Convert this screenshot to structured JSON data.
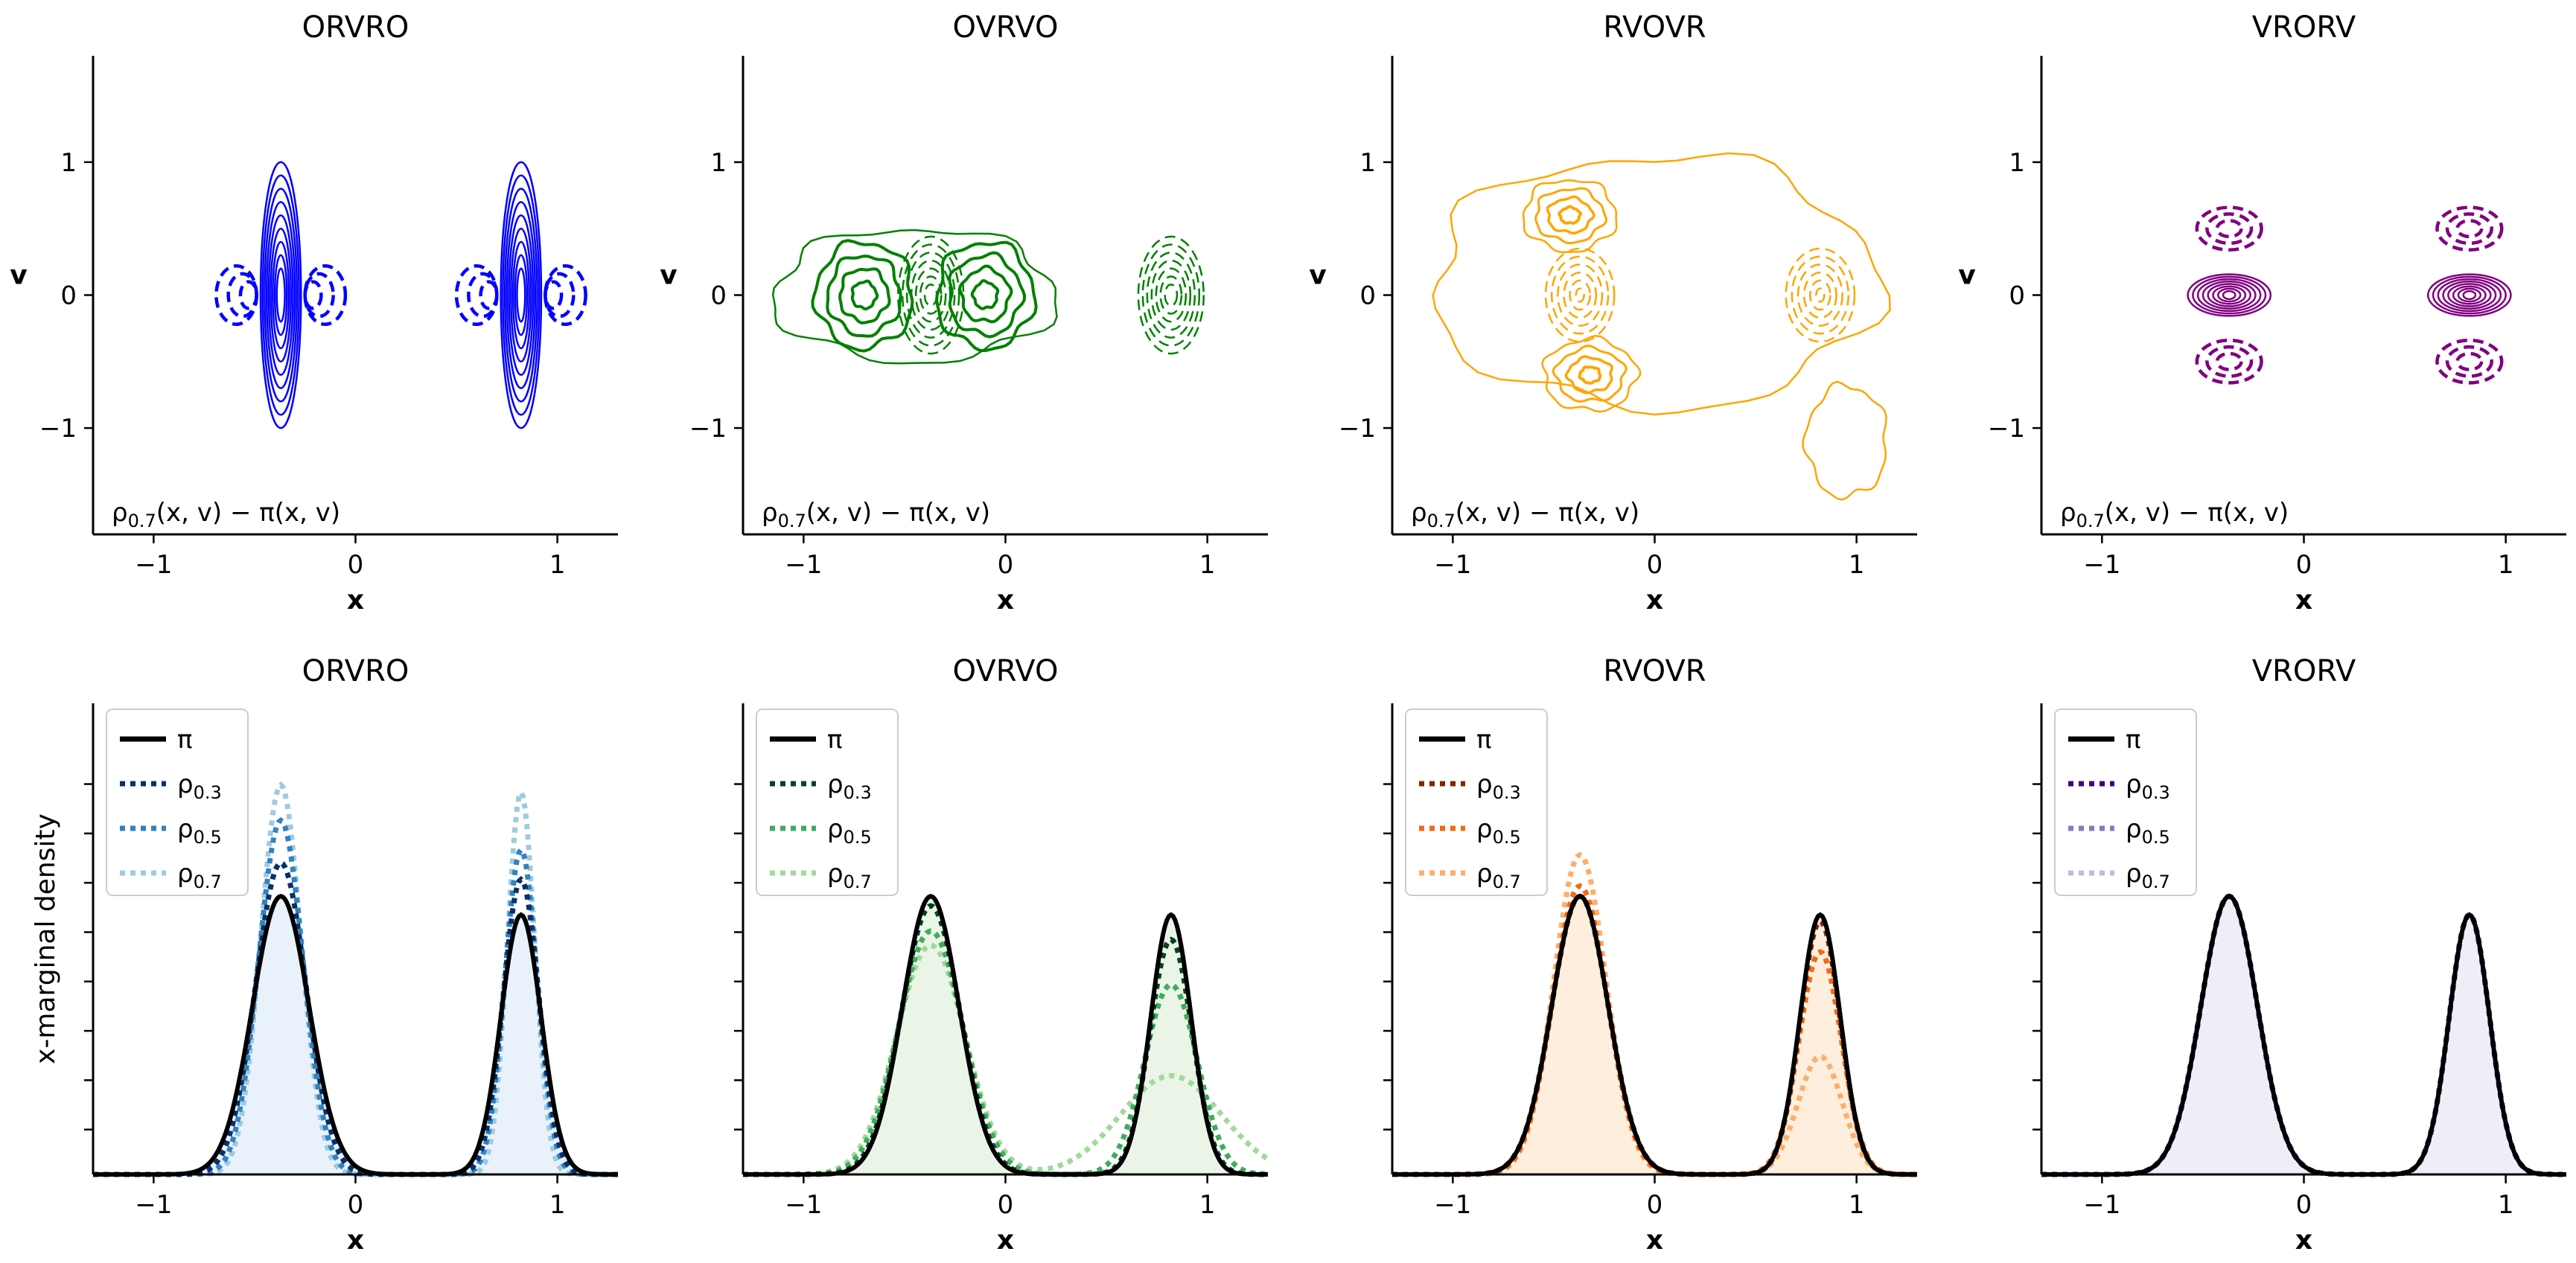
{
  "chart_data": {
    "type": "contour+line",
    "xlim": [
      -1.3,
      1.3
    ],
    "xticks": [
      -1,
      0,
      1
    ],
    "xtick_labels": [
      "−1",
      "0",
      "1"
    ],
    "xlabel": "x",
    "top_row": {
      "ylim": [
        -1.8,
        1.8
      ],
      "yticks": [
        -1,
        0,
        1
      ],
      "ytick_labels": [
        "−1",
        "0",
        "1"
      ],
      "ylabel": "v",
      "annotation": "ρ",
      "annotation_sub": "0.7",
      "annotation_rest": "(x, v) − π(x, v)",
      "panels": [
        {
          "title": "ORVRO",
          "color": "#0000ff",
          "mode_x": [
            -0.37,
            0.82
          ],
          "solid_center_rx": [
            0.06,
            0.06
          ],
          "solid_extent_v": 1.0,
          "dashed_side_offset": 0.2
        },
        {
          "title": "OVRVO",
          "color": "#008000",
          "mode_x": [
            -0.37,
            0.82
          ],
          "solid_lobes_x": [
            -0.7,
            -0.1
          ],
          "dashed_center_x": [
            -0.37,
            0.82
          ]
        },
        {
          "title": "RVOVR",
          "color": "#ffa500",
          "mode_x": [
            -0.37,
            0.82
          ],
          "solid_lobes_v": [
            0.55,
            -0.55
          ],
          "dashed_center_x": [
            -0.37,
            0.82
          ]
        },
        {
          "title": "VRORV",
          "color": "#800080",
          "mode_x": [
            -0.37,
            0.82
          ],
          "solid_center_x": [
            -0.37,
            0.82
          ],
          "dashed_lobes_v": [
            0.5,
            -0.5
          ]
        }
      ]
    },
    "bottom_row": {
      "ylim": [
        0,
        1.05
      ],
      "ylabel": "x-marginal density",
      "series_names": [
        "π",
        "ρ",
        "ρ",
        "ρ"
      ],
      "series_subs": [
        "",
        "0.3",
        "0.5",
        "0.7"
      ],
      "target": {
        "modes": [
          {
            "mu": -0.37,
            "sd": 0.14,
            "w": 0.6
          },
          {
            "mu": 0.82,
            "sd": 0.1,
            "w": 0.4
          }
        ]
      },
      "panels": [
        {
          "title": "ORVRO",
          "fill": "#e9f1fb",
          "colors": [
            "#000000",
            "#08306b",
            "#3182bd",
            "#9ecae1"
          ],
          "rho": [
            {
              "modes": [
                {
                  "mu": -0.37,
                  "sd": 0.125,
                  "w": 0.6
                },
                {
                  "mu": 0.82,
                  "sd": 0.088,
                  "w": 0.4
                }
              ]
            },
            {
              "modes": [
                {
                  "mu": -0.37,
                  "sd": 0.11,
                  "w": 0.6
                },
                {
                  "mu": 0.82,
                  "sd": 0.08,
                  "w": 0.4
                }
              ]
            },
            {
              "modes": [
                {
                  "mu": -0.37,
                  "sd": 0.1,
                  "w": 0.6
                },
                {
                  "mu": 0.82,
                  "sd": 0.068,
                  "w": 0.4
                }
              ]
            }
          ]
        },
        {
          "title": "OVRVO",
          "fill": "#eaf5e8",
          "colors": [
            "#000000",
            "#00441b",
            "#41ab5d",
            "#a1d99b"
          ],
          "rho": [
            {
              "modes": [
                {
                  "mu": -0.37,
                  "sd": 0.145,
                  "w": 0.6
                },
                {
                  "mu": 0.82,
                  "sd": 0.105,
                  "w": 0.38
                }
              ]
            },
            {
              "modes": [
                {
                  "mu": -0.37,
                  "sd": 0.16,
                  "w": 0.6
                },
                {
                  "mu": 0.82,
                  "sd": 0.13,
                  "w": 0.38
                }
              ]
            },
            {
              "modes": [
                {
                  "mu": -0.37,
                  "sd": 0.17,
                  "w": 0.6
                },
                {
                  "mu": 0.82,
                  "sd": 0.25,
                  "w": 0.38
                }
              ]
            }
          ]
        },
        {
          "title": "RVOVR",
          "fill": "#fdeedd",
          "colors": [
            "#000000",
            "#7f2704",
            "#f16913",
            "#fdae6b"
          ],
          "rho": [
            {
              "modes": [
                {
                  "mu": -0.37,
                  "sd": 0.14,
                  "w": 0.6
                },
                {
                  "mu": 0.82,
                  "sd": 0.1,
                  "w": 0.39
                }
              ]
            },
            {
              "modes": [
                {
                  "mu": -0.37,
                  "sd": 0.135,
                  "w": 0.6
                },
                {
                  "mu": 0.82,
                  "sd": 0.105,
                  "w": 0.36
                }
              ]
            },
            {
              "modes": [
                {
                  "mu": -0.37,
                  "sd": 0.13,
                  "w": 0.64
                },
                {
                  "mu": 0.82,
                  "sd": 0.11,
                  "w": 0.2
                }
              ]
            }
          ]
        },
        {
          "title": "VRORV",
          "fill": "#efeef6",
          "colors": [
            "#000000",
            "#3f007d",
            "#807dba",
            "#bcbddc"
          ],
          "rho": [
            {
              "modes": [
                {
                  "mu": -0.37,
                  "sd": 0.14,
                  "w": 0.6
                },
                {
                  "mu": 0.82,
                  "sd": 0.1,
                  "w": 0.4
                }
              ]
            },
            {
              "modes": [
                {
                  "mu": -0.37,
                  "sd": 0.14,
                  "w": 0.6
                },
                {
                  "mu": 0.82,
                  "sd": 0.1,
                  "w": 0.4
                }
              ]
            },
            {
              "modes": [
                {
                  "mu": -0.37,
                  "sd": 0.14,
                  "w": 0.6
                },
                {
                  "mu": 0.82,
                  "sd": 0.1,
                  "w": 0.4
                }
              ]
            }
          ]
        }
      ]
    }
  }
}
